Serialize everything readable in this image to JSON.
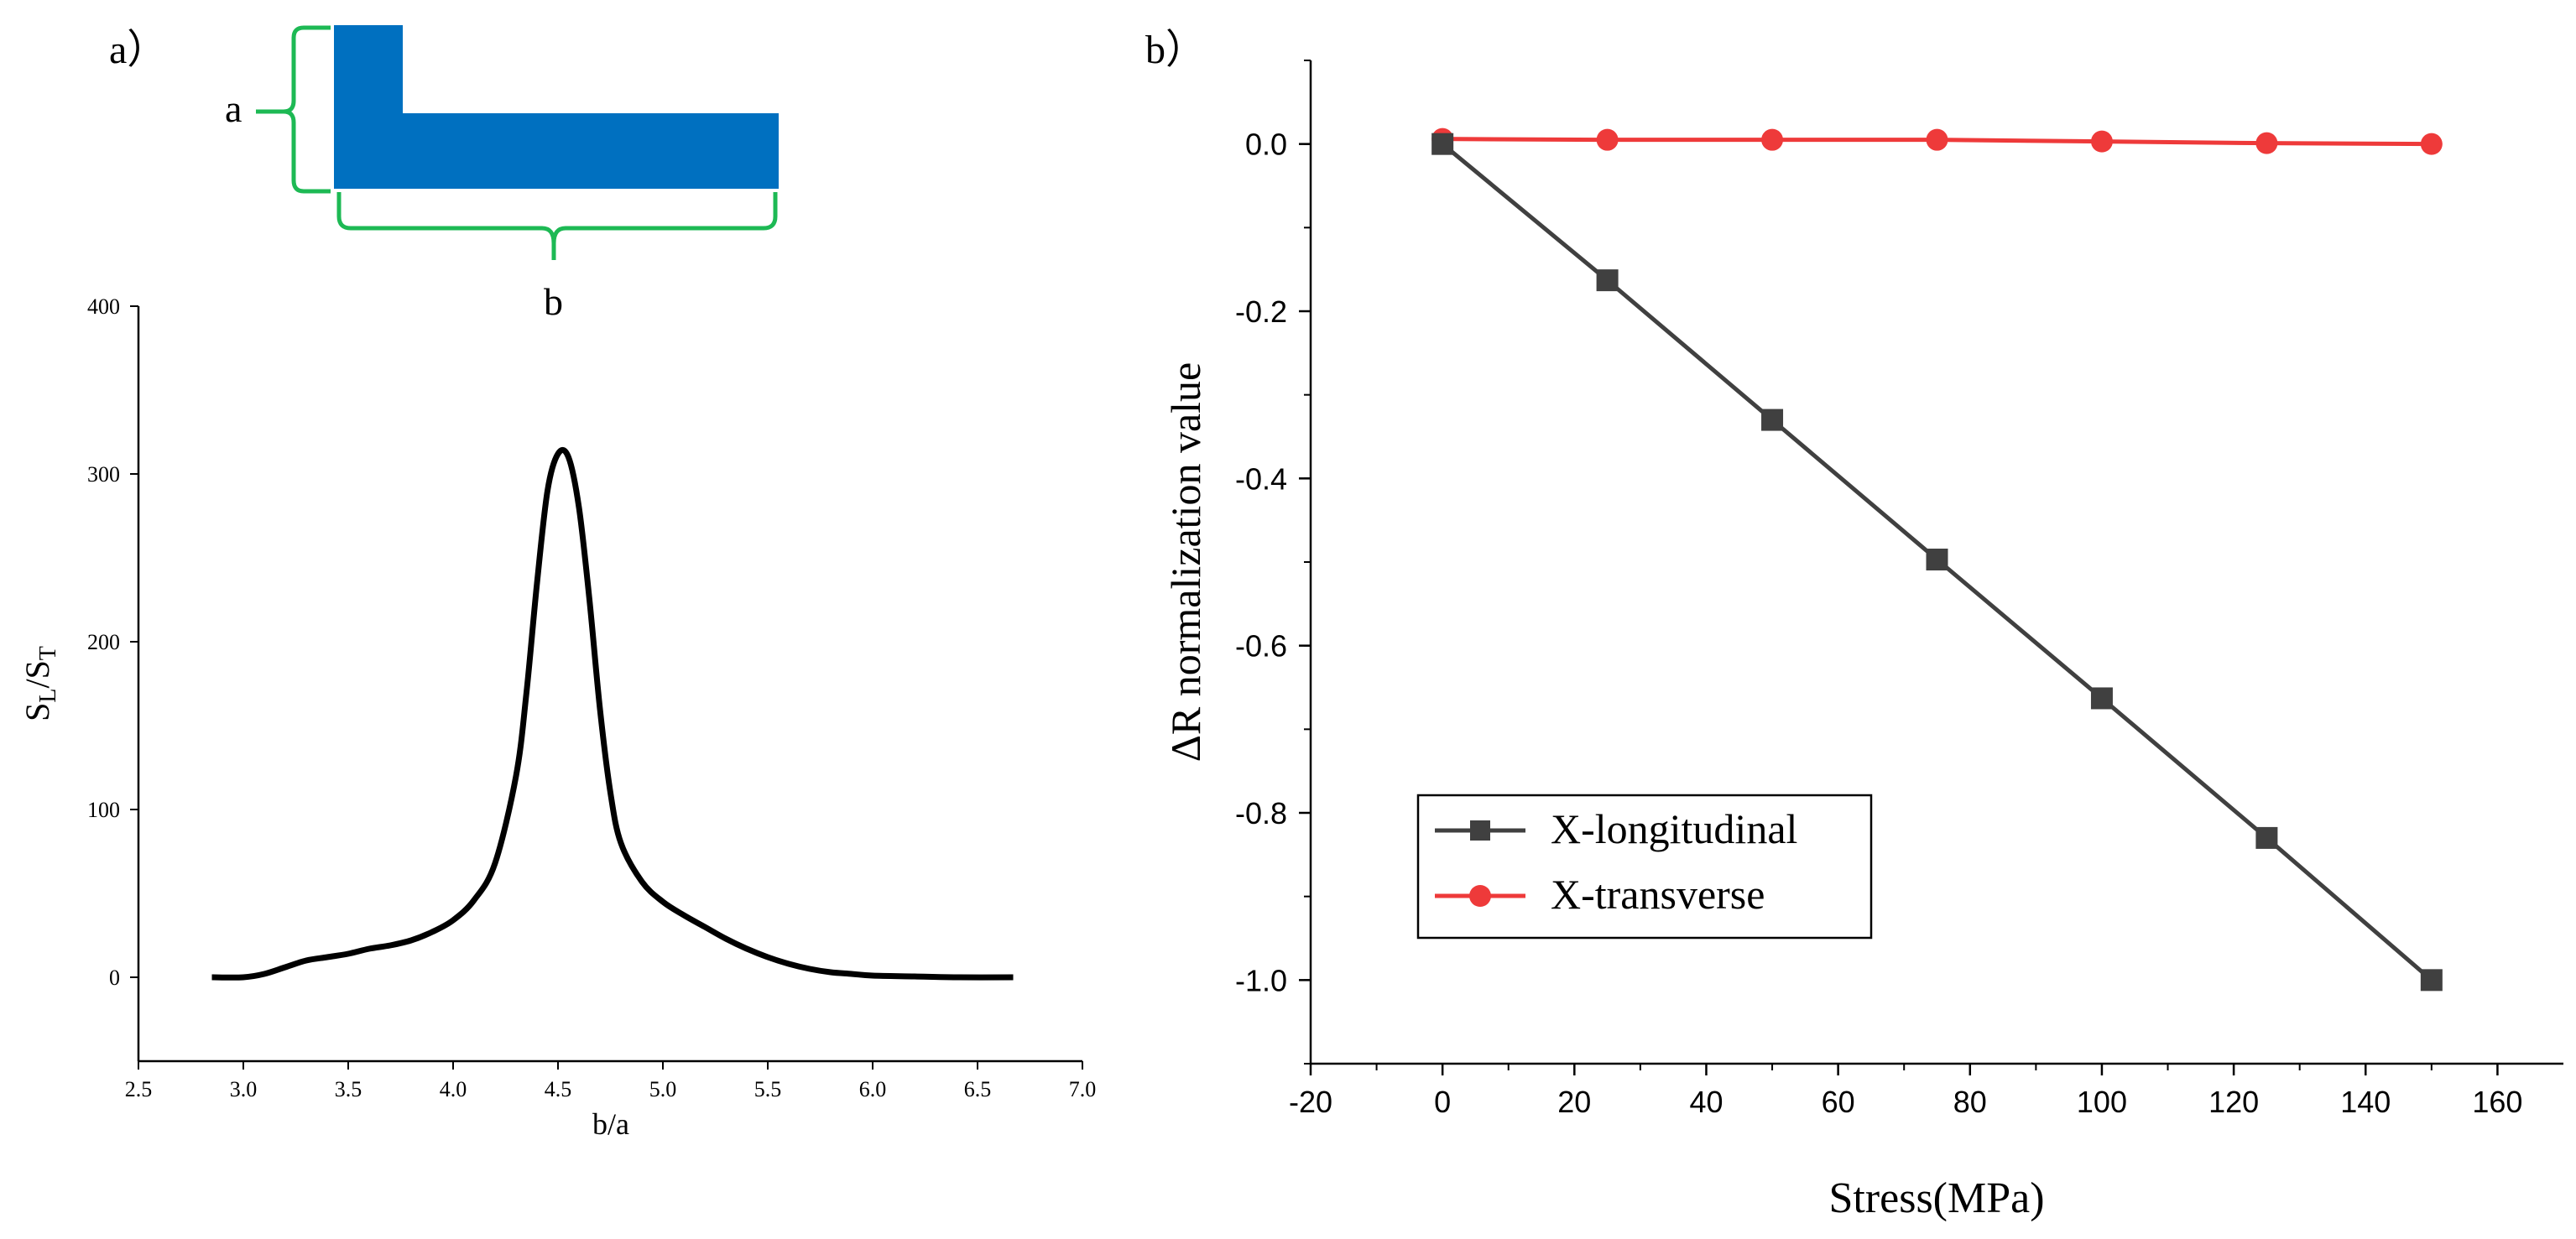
{
  "panel_a": {
    "label": "a）",
    "schematic": {
      "dim_a_label": "a",
      "dim_b_label": "b",
      "shape_color": "#0070C0",
      "bracket_color": "#1DB954"
    }
  },
  "panel_b": {
    "label": "b）"
  },
  "chart_data": [
    {
      "id": "panel-a-chart",
      "type": "line",
      "title": "",
      "xlabel": "b/a",
      "ylabel_main": "S",
      "ylabel_sub1": "L",
      "ylabel_mid": "/S",
      "ylabel_sub2": "T",
      "xlim": [
        2.5,
        7.0
      ],
      "ylim": [
        -50,
        400
      ],
      "xticks": [
        2.5,
        3.0,
        3.5,
        4.0,
        4.5,
        5.0,
        5.5,
        6.0,
        6.5,
        7.0
      ],
      "xtick_labels": [
        "2.5",
        "3.0",
        "3.5",
        "4.0",
        "4.5",
        "5.0",
        "5.5",
        "6.0",
        "6.5",
        "7.0"
      ],
      "yticks": [
        0,
        100,
        200,
        300,
        400
      ],
      "ytick_labels": [
        "0",
        "100",
        "200",
        "300",
        "400"
      ],
      "grid": false,
      "series": [
        {
          "name": "S_L/S_T",
          "color": "#000000",
          "x": [
            2.85,
            3.0,
            3.1,
            3.2,
            3.3,
            3.4,
            3.5,
            3.6,
            3.7,
            3.8,
            3.9,
            4.0,
            4.1,
            4.2,
            4.3,
            4.35,
            4.4,
            4.45,
            4.5,
            4.55,
            4.6,
            4.65,
            4.7,
            4.75,
            4.8,
            4.9,
            5.0,
            5.1,
            5.2,
            5.3,
            5.4,
            5.5,
            5.6,
            5.7,
            5.8,
            5.9,
            6.0,
            6.2,
            6.4,
            6.67
          ],
          "y": [
            0,
            0,
            2,
            6,
            10,
            12,
            14,
            17,
            19,
            22,
            27,
            34,
            46,
            68,
            120,
            170,
            235,
            290,
            312,
            310,
            280,
            225,
            160,
            110,
            80,
            57,
            45,
            37,
            30,
            23,
            17,
            12,
            8,
            5,
            3,
            2,
            1,
            0.5,
            0,
            0
          ]
        }
      ]
    },
    {
      "id": "panel-b-chart",
      "type": "line",
      "title": "",
      "xlabel": "Stress(MPa)",
      "ylabel": "ΔR normalization value",
      "xlim": [
        -20,
        170
      ],
      "ylim": [
        -1.1,
        0.1
      ],
      "xticks": [
        -20,
        0,
        20,
        40,
        60,
        80,
        100,
        120,
        140,
        160
      ],
      "xtick_labels": [
        "-20",
        "0",
        "20",
        "40",
        "60",
        "80",
        "100",
        "120",
        "140",
        "160"
      ],
      "yticks": [
        0.0,
        -0.2,
        -0.4,
        -0.6,
        -0.8,
        -1.0
      ],
      "ytick_labels": [
        "0.0",
        "-0.2",
        "-0.4",
        "-0.6",
        "-0.8",
        "-1.0"
      ],
      "grid": false,
      "legend_position": "bottom-left",
      "series": [
        {
          "name": "X-longitudinal",
          "color": "#404040",
          "marker": "square",
          "x": [
            0,
            25,
            50,
            75,
            100,
            125,
            150
          ],
          "y": [
            0.0,
            -0.163,
            -0.33,
            -0.497,
            -0.663,
            -0.83,
            -1.0
          ]
        },
        {
          "name": "X-transverse",
          "color": "#EE3A3A",
          "marker": "circle",
          "x": [
            0,
            25,
            50,
            75,
            100,
            125,
            150
          ],
          "y": [
            0.006,
            0.005,
            0.005,
            0.005,
            0.003,
            0.001,
            0.0
          ]
        }
      ]
    }
  ]
}
